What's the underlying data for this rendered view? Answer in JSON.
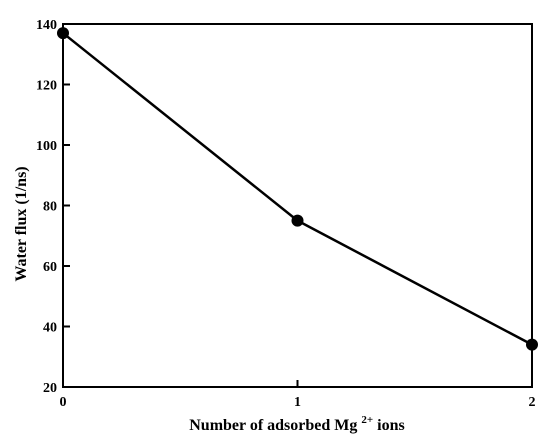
{
  "chart_data": {
    "type": "line",
    "title": "",
    "xlabel": {
      "prefix": "Number of adsorbed Mg",
      "superscript": "2+",
      "suffix": " ions"
    },
    "ylabel": "Water flux (1/ns)",
    "x": [
      0,
      1,
      2
    ],
    "series": [
      {
        "values": [
          137,
          75,
          34
        ]
      }
    ],
    "xlim": [
      0,
      2
    ],
    "ylim": [
      20,
      140
    ],
    "xticks": [
      0,
      1,
      2
    ],
    "xtick_labels": [
      "0",
      "1",
      "2"
    ],
    "yticks": [
      20,
      40,
      60,
      80,
      100,
      120,
      140
    ],
    "ytick_labels": [
      "20",
      "40",
      "60",
      "80",
      "100",
      "120",
      "140"
    ],
    "grid": false,
    "legend": "none",
    "line_color": "#000000",
    "marker_color": "#000000"
  }
}
